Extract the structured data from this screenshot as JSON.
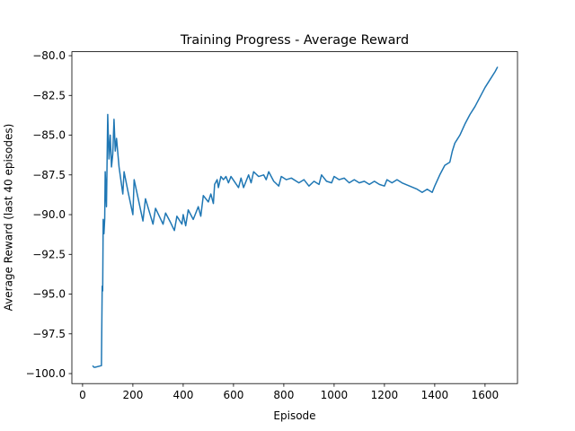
{
  "chart_data": {
    "type": "line",
    "title": "Training Progress - Average Reward",
    "xlabel": "Episode",
    "ylabel": "Average Reward (last 40 episodes)",
    "color": "#1f77b4",
    "x": [
      40,
      45,
      50,
      75,
      78,
      80,
      82,
      85,
      88,
      90,
      95,
      100,
      105,
      110,
      115,
      120,
      125,
      130,
      135,
      145,
      160,
      165,
      180,
      200,
      205,
      240,
      250,
      280,
      290,
      320,
      330,
      350,
      365,
      375,
      395,
      400,
      410,
      420,
      440,
      460,
      470,
      480,
      500,
      510,
      520,
      525,
      535,
      540,
      550,
      560,
      570,
      580,
      590,
      620,
      630,
      640,
      660,
      670,
      680,
      700,
      720,
      730,
      740,
      760,
      780,
      790,
      810,
      830,
      860,
      880,
      900,
      920,
      940,
      950,
      970,
      990,
      1000,
      1020,
      1040,
      1060,
      1080,
      1100,
      1120,
      1140,
      1160,
      1180,
      1200,
      1210,
      1230,
      1250,
      1270,
      1300,
      1330,
      1350,
      1370,
      1390,
      1400,
      1420,
      1440,
      1460,
      1470,
      1480,
      1500,
      1520,
      1540,
      1560,
      1580,
      1600,
      1620,
      1640,
      1650
    ],
    "values": [
      -99.5,
      -99.6,
      -99.6,
      -99.5,
      -94.5,
      -94.8,
      -90.3,
      -91.2,
      -90.3,
      -87.3,
      -89.5,
      -83.7,
      -86.5,
      -85,
      -87,
      -86.2,
      -84,
      -86,
      -85.2,
      -87,
      -88.7,
      -87.3,
      -88.5,
      -90,
      -87.8,
      -90.4,
      -89,
      -90.6,
      -89.6,
      -90.6,
      -89.9,
      -90.5,
      -91,
      -90.1,
      -90.6,
      -90,
      -90.7,
      -89.7,
      -90.3,
      -89.5,
      -90.1,
      -88.8,
      -89.2,
      -88.7,
      -89.3,
      -88.1,
      -87.8,
      -88.3,
      -87.6,
      -87.8,
      -87.6,
      -88,
      -87.6,
      -88.3,
      -87.7,
      -88.3,
      -87.5,
      -88,
      -87.3,
      -87.6,
      -87.5,
      -87.8,
      -87.3,
      -87.9,
      -88.2,
      -87.6,
      -87.8,
      -87.7,
      -88,
      -87.8,
      -88.2,
      -87.9,
      -88.1,
      -87.5,
      -87.9,
      -88,
      -87.6,
      -87.8,
      -87.7,
      -88,
      -87.8,
      -88,
      -87.9,
      -88.1,
      -87.9,
      -88.1,
      -88.2,
      -87.8,
      -88,
      -87.8,
      -88,
      -88.2,
      -88.4,
      -88.6,
      -88.4,
      -88.6,
      -88.2,
      -87.5,
      -86.9,
      -86.7,
      -86,
      -85.5,
      -85,
      -84.3,
      -83.7,
      -83.2,
      -82.6,
      -82,
      -81.5,
      -81,
      -80.7
    ],
    "xlim": [
      -42.5,
      1729
    ],
    "xticks": [
      0,
      200,
      400,
      600,
      800,
      1000,
      1200,
      1400,
      1600
    ],
    "ylim": [
      -100.63,
      -79.75
    ],
    "yticks": [
      {
        "value": -100,
        "label": "−100.0"
      },
      {
        "value": -97.5,
        "label": "−97.5"
      },
      {
        "value": -95,
        "label": "−95.0"
      },
      {
        "value": -92.5,
        "label": "−92.5"
      },
      {
        "value": -90,
        "label": "−90.0"
      },
      {
        "value": -87.5,
        "label": "−87.5"
      },
      {
        "value": -85,
        "label": "−85.0"
      },
      {
        "value": -82.5,
        "label": "−82.5"
      },
      {
        "value": -80,
        "label": "−80.0"
      }
    ]
  }
}
